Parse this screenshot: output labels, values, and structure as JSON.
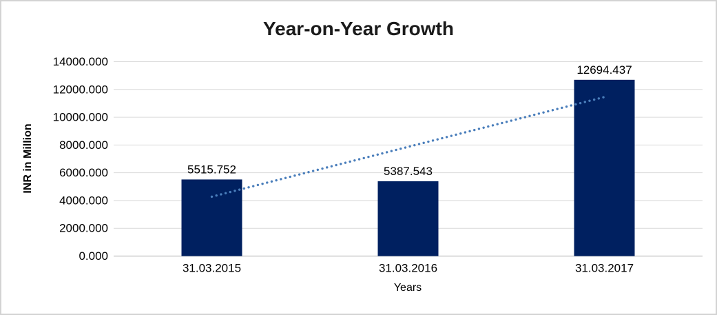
{
  "chart_data": {
    "type": "bar",
    "title": "Year-on-Year Growth",
    "xlabel": "Years",
    "ylabel": "INR in Million",
    "categories": [
      "31.03.2015",
      "31.03.2016",
      "31.03.2017"
    ],
    "values": [
      5515.752,
      5387.543,
      12694.437
    ],
    "data_labels": [
      "5515.752",
      "5387.543",
      "12694.437"
    ],
    "ylim": [
      0,
      14000
    ],
    "ytick_step": 2000,
    "ytick_decimals": 3,
    "ytick_labels": [
      "0.000",
      "2000.000",
      "4000.000",
      "6000.000",
      "8000.000",
      "10000.000",
      "12000.000",
      "14000.000"
    ],
    "grid": true,
    "legend": "none",
    "trendline": {
      "type": "linear",
      "style": "dotted"
    },
    "colors": {
      "bar": "#002060",
      "trendline": "#4a7ebb",
      "gridline": "#d9d9d9",
      "axis_line": "#bfbfbf",
      "text": "#000000",
      "title_text": "#1a1a1a",
      "border": "#d3d3d3",
      "background": "#ffffff"
    }
  }
}
